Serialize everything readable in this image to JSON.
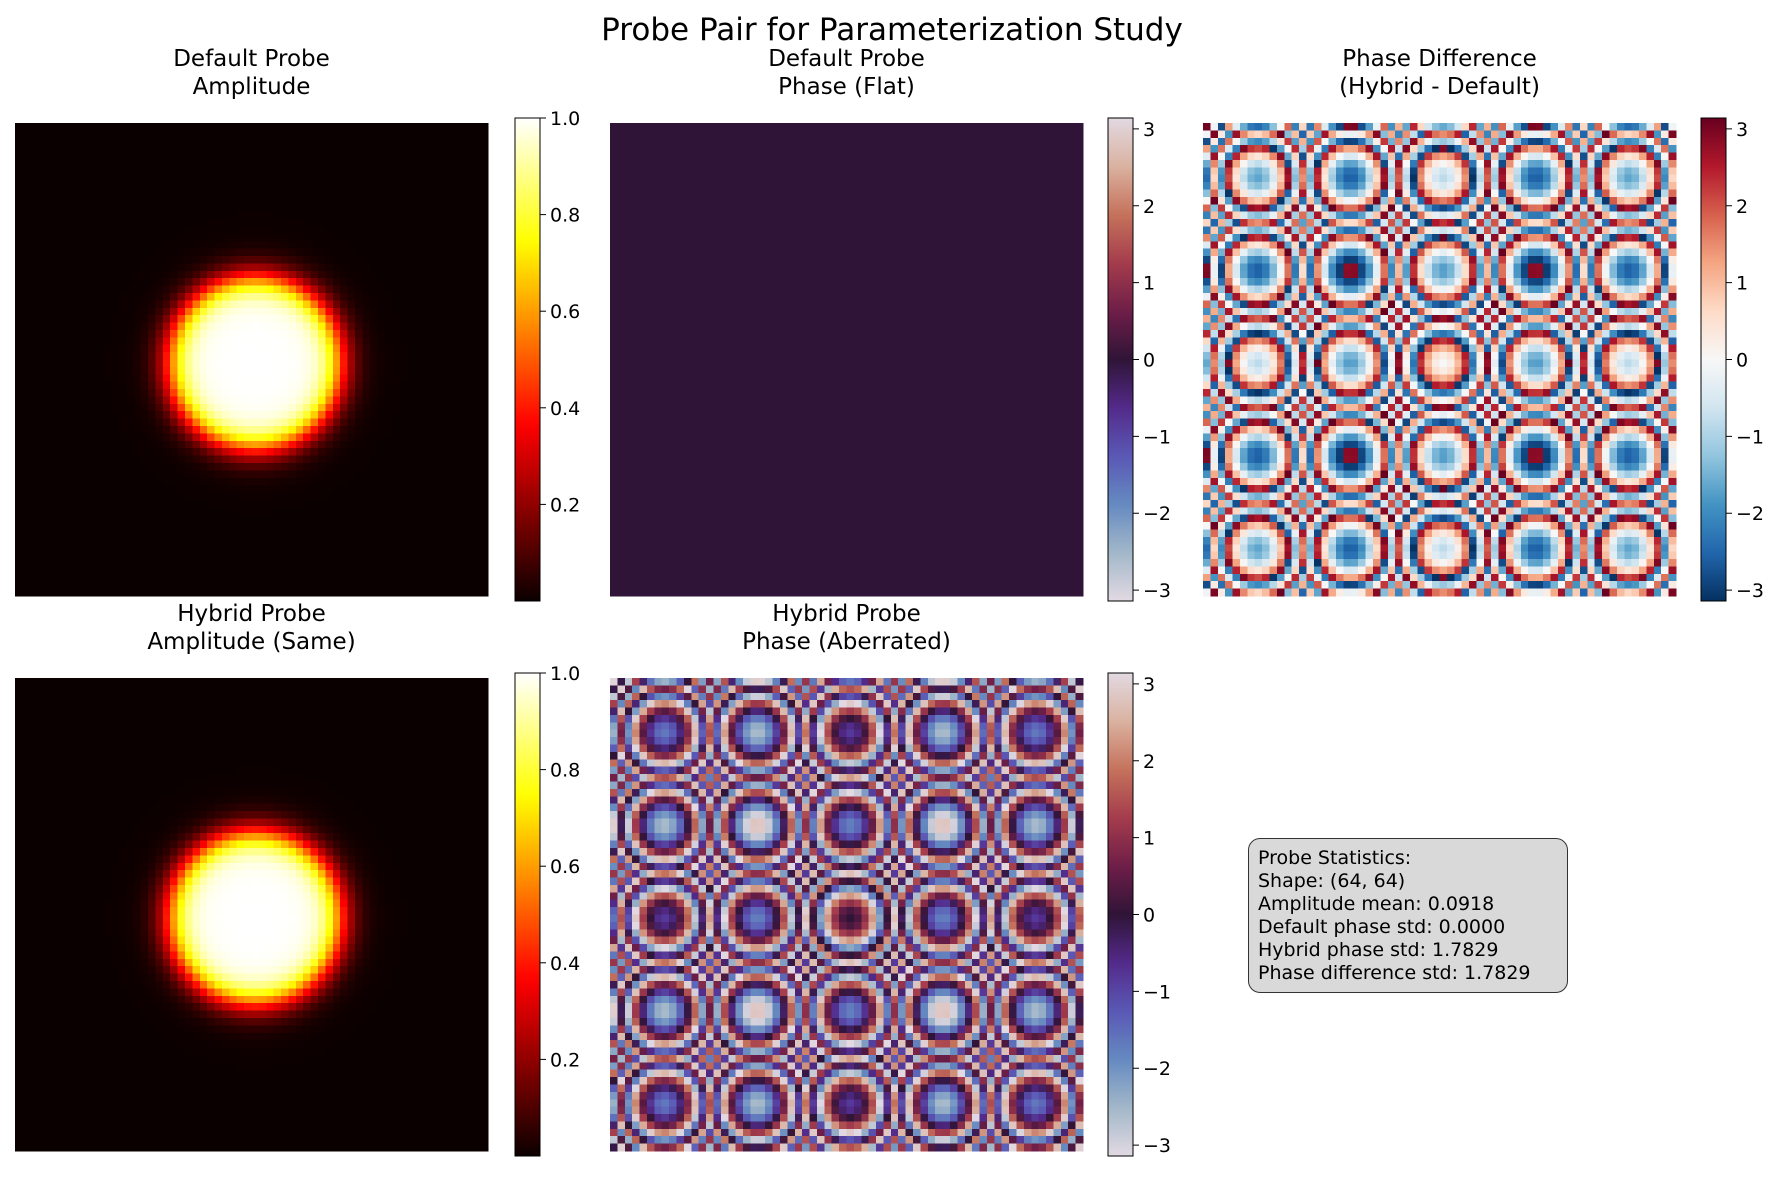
{
  "figure": {
    "title": "Probe Pair for Parameterization Study"
  },
  "chart_data": [
    {
      "type": "heatmap",
      "panel": "top-left",
      "title": "Default Probe\nAmplitude",
      "colormap": "hot",
      "grid_shape": [
        64,
        64
      ],
      "pattern": "disk",
      "disk_center": [
        32,
        32
      ],
      "disk_radius": 11.5,
      "edge_width": 1.2,
      "zlim": [
        0.0,
        1.0
      ],
      "colorbar_ticks": [
        "0.2",
        "0.4",
        "0.6",
        "0.8",
        "1.0"
      ],
      "axis_visible": false
    },
    {
      "type": "heatmap",
      "panel": "top-middle",
      "title": "Default Probe\nPhase (Flat)",
      "colormap": "twilight",
      "grid_shape": [
        64,
        64
      ],
      "pattern": "constant",
      "value": 0,
      "zlim": [
        -3.14159,
        3.14159
      ],
      "colorbar_ticks": [
        "−3",
        "−2",
        "−1",
        "0",
        "1",
        "2",
        "3"
      ],
      "axis_visible": false
    },
    {
      "type": "heatmap",
      "panel": "top-right",
      "title": "Phase Difference\n(Hybrid - Default)",
      "colormap": "RdBu_r",
      "grid_shape": [
        64,
        64
      ],
      "pattern": "aberration",
      "aberration_coeff": 0.25,
      "zlim": [
        -3.14159,
        3.14159
      ],
      "colorbar_ticks": [
        "−3",
        "−2",
        "−1",
        "0",
        "1",
        "2",
        "3"
      ],
      "axis_visible": false
    },
    {
      "type": "heatmap",
      "panel": "bottom-left",
      "title": "Hybrid Probe\nAmplitude (Same)",
      "colormap": "hot",
      "grid_shape": [
        64,
        64
      ],
      "pattern": "disk",
      "disk_center": [
        32,
        32
      ],
      "disk_radius": 11.5,
      "edge_width": 1.2,
      "zlim": [
        0.0,
        1.0
      ],
      "colorbar_ticks": [
        "0.2",
        "0.4",
        "0.6",
        "0.8",
        "1.0"
      ],
      "axis_visible": false
    },
    {
      "type": "heatmap",
      "panel": "bottom-middle",
      "title": "Hybrid Probe\nPhase (Aberrated)",
      "colormap": "twilight",
      "grid_shape": [
        64,
        64
      ],
      "pattern": "aberration",
      "aberration_coeff": 0.25,
      "zlim": [
        -3.14159,
        3.14159
      ],
      "colorbar_ticks": [
        "−3",
        "−2",
        "−1",
        "0",
        "1",
        "2",
        "3"
      ],
      "axis_visible": false
    }
  ],
  "stats": {
    "lines": [
      "Probe Statistics:",
      "Shape: (64, 64)",
      "Amplitude mean: 0.0918",
      "Default phase std: 0.0000",
      "Hybrid phase std: 1.7829",
      "Phase difference std: 1.7829"
    ]
  }
}
